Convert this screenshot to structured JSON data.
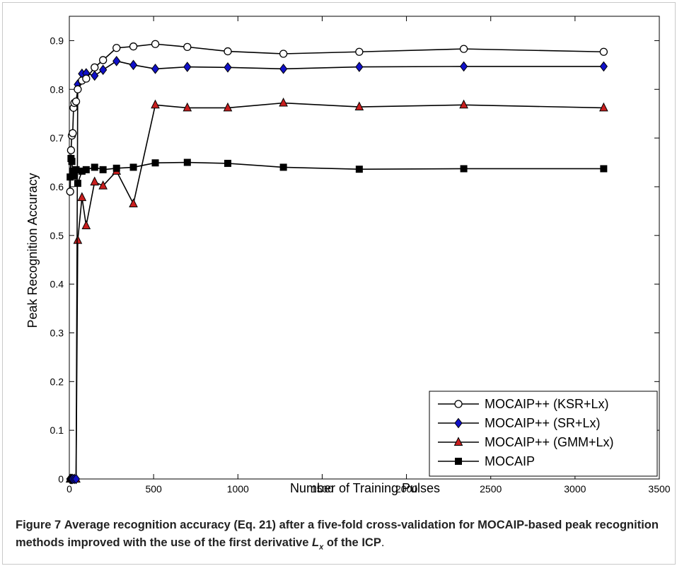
{
  "figure": {
    "caption": {
      "label": "Figure 7",
      "text_a": "Average recognition accuracy (Eq. 21) after a five-fold cross-validation for MOCAIP-based peak recognition methods improved with the use of the first derivative",
      "symbol": "L",
      "symbol_sub": "x",
      "text_b": "of the ICP",
      "period": "."
    }
  },
  "colors": {
    "line": "#000000",
    "sr_marker": "#1010c8",
    "gmm_marker": "#c81e1e",
    "ksr_marker": "#ffffff",
    "mocaip_marker": "#000000"
  },
  "chart_data": {
    "type": "line",
    "xlabel": "Number of Training Pulses",
    "ylabel": "Peak Recognition Accuracy",
    "xlim": [
      0,
      3500
    ],
    "ylim": [
      0,
      0.95
    ],
    "xticks": [
      0,
      500,
      1000,
      1500,
      2000,
      2500,
      3000,
      3500
    ],
    "yticks": [
      0,
      0.1,
      0.2,
      0.3,
      0.4,
      0.5,
      0.6,
      0.7,
      0.8,
      0.9
    ],
    "xtick_labels": [
      "0",
      "500",
      "1000",
      "1500",
      "2000",
      "2500",
      "3000",
      "3500"
    ],
    "ytick_labels": [
      "0",
      "0.1",
      "0.2",
      "0.3",
      "0.4",
      "0.5",
      "0.6",
      "0.7",
      "0.8",
      "0.9"
    ],
    "grid": false,
    "legend_position": "bottom-right",
    "series": [
      {
        "name": "MOCAIP++ (KSR+Lx)",
        "marker": "circle",
        "x": [
          5,
          10,
          15,
          20,
          25,
          30,
          40,
          50,
          75,
          100,
          150,
          200,
          280,
          380,
          510,
          700,
          940,
          1270,
          1720,
          2340,
          3170
        ],
        "y": [
          0.59,
          0.675,
          0.705,
          0.71,
          0.762,
          0.772,
          0.775,
          0.8,
          0.818,
          0.822,
          0.845,
          0.86,
          0.885,
          0.888,
          0.893,
          0.887,
          0.878,
          0.873,
          0.877,
          0.883,
          0.877
        ]
      },
      {
        "name": "MOCAIP++ (SR+Lx)",
        "marker": "diamond",
        "x": [
          5,
          10,
          15,
          20,
          30,
          40,
          50,
          75,
          100,
          150,
          200,
          280,
          380,
          510,
          700,
          940,
          1270,
          1720,
          2340,
          3170
        ],
        "y": [
          0.0,
          0.0,
          0.0,
          0.0,
          0.0,
          0.0,
          0.81,
          0.832,
          0.833,
          0.828,
          0.84,
          0.858,
          0.85,
          0.842,
          0.846,
          0.845,
          0.842,
          0.846,
          0.847,
          0.847
        ]
      },
      {
        "name": "MOCAIP++ (GMM+Lx)",
        "marker": "triangle",
        "x": [
          5,
          10,
          20,
          30,
          40,
          50,
          75,
          100,
          150,
          200,
          280,
          380,
          510,
          700,
          940,
          1270,
          1720,
          2340,
          3170
        ],
        "y": [
          0.0,
          0.0,
          0.0,
          0.0,
          0.0,
          0.49,
          0.578,
          0.52,
          0.61,
          0.602,
          0.632,
          0.565,
          0.768,
          0.762,
          0.762,
          0.772,
          0.764,
          0.768,
          0.762
        ]
      },
      {
        "name": "MOCAIP",
        "marker": "square",
        "x": [
          5,
          10,
          15,
          20,
          25,
          30,
          40,
          50,
          75,
          100,
          150,
          200,
          280,
          380,
          510,
          700,
          940,
          1270,
          1720,
          2340,
          3170
        ],
        "y": [
          0.62,
          0.658,
          0.652,
          0.632,
          0.622,
          0.628,
          0.635,
          0.607,
          0.632,
          0.635,
          0.64,
          0.635,
          0.638,
          0.64,
          0.649,
          0.65,
          0.648,
          0.64,
          0.636,
          0.637,
          0.637
        ]
      }
    ]
  }
}
